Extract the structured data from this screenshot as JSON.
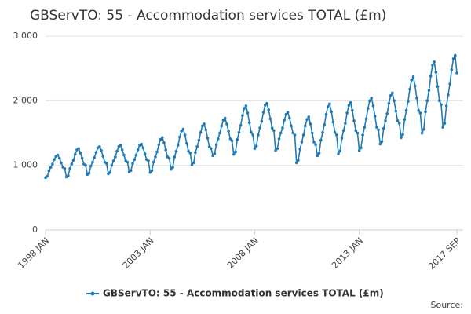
{
  "chart_data": {
    "type": "line",
    "title": "GBServTO: 55 - Accommodation services TOTAL (£m)",
    "source": "Source:",
    "categories": [
      "1998 JAN",
      null,
      null,
      null,
      null,
      null,
      null,
      null,
      null,
      null,
      null,
      null,
      null,
      null,
      null,
      null,
      null,
      null,
      null,
      null,
      null,
      null,
      null,
      null,
      null,
      null,
      null,
      null,
      null,
      null,
      null,
      null,
      null,
      null,
      null,
      null,
      null,
      null,
      null,
      null,
      null,
      null,
      null,
      null,
      null,
      null,
      null,
      null,
      null,
      null,
      null,
      null,
      null,
      null,
      null,
      null,
      null,
      null,
      null,
      null,
      "2003 JAN",
      null,
      null,
      null,
      null,
      null,
      null,
      null,
      null,
      null,
      null,
      null,
      null,
      null,
      null,
      null,
      null,
      null,
      null,
      null,
      null,
      null,
      null,
      null,
      null,
      null,
      null,
      null,
      null,
      null,
      null,
      null,
      null,
      null,
      null,
      null,
      null,
      null,
      null,
      null,
      null,
      null,
      null,
      null,
      null,
      null,
      null,
      null,
      null,
      null,
      null,
      null,
      null,
      null,
      null,
      null,
      null,
      null,
      null,
      null,
      "2008 JAN",
      null,
      null,
      null,
      null,
      null,
      null,
      null,
      null,
      null,
      null,
      null,
      null,
      null,
      null,
      null,
      null,
      null,
      null,
      null,
      null,
      null,
      null,
      null,
      null,
      null,
      null,
      null,
      null,
      null,
      null,
      null,
      null,
      null,
      null,
      null,
      null,
      null,
      null,
      null,
      null,
      null,
      null,
      null,
      null,
      null,
      null,
      null,
      null,
      null,
      null,
      null,
      null,
      null,
      null,
      null,
      null,
      null,
      null,
      null,
      "2013 JAN",
      null,
      null,
      null,
      null,
      null,
      null,
      null,
      null,
      null,
      null,
      null,
      null,
      null,
      null,
      null,
      null,
      null,
      null,
      null,
      null,
      null,
      null,
      null,
      null,
      null,
      null,
      null,
      null,
      null,
      null,
      null,
      null,
      null,
      null,
      null,
      null,
      null,
      null,
      null,
      null,
      null,
      null,
      null,
      null,
      null,
      null,
      null,
      null,
      null,
      null,
      null,
      null,
      null,
      null,
      null,
      "2017 SEP"
    ],
    "series": [
      {
        "name": "GBServTO: 55 - Accommodation services TOTAL (£m)",
        "color": "#1f7ab5",
        "values": [
          810,
          830,
          915,
          970,
          1020,
          1090,
          1140,
          1160,
          1110,
          1040,
          970,
          950,
          820,
          840,
          950,
          1020,
          1080,
          1170,
          1240,
          1260,
          1190,
          1110,
          1020,
          1000,
          860,
          880,
          990,
          1050,
          1120,
          1200,
          1270,
          1290,
          1230,
          1140,
          1050,
          1030,
          870,
          890,
          1000,
          1070,
          1130,
          1220,
          1290,
          1310,
          1240,
          1160,
          1070,
          1050,
          900,
          920,
          1030,
          1090,
          1160,
          1240,
          1310,
          1330,
          1270,
          1180,
          1090,
          1070,
          890,
          920,
          1050,
          1130,
          1210,
          1320,
          1400,
          1430,
          1350,
          1240,
          1130,
          1110,
          940,
          970,
          1130,
          1220,
          1310,
          1440,
          1530,
          1560,
          1470,
          1340,
          1220,
          1190,
          1010,
          1040,
          1200,
          1290,
          1390,
          1510,
          1610,
          1640,
          1550,
          1420,
          1290,
          1260,
          1150,
          1180,
          1320,
          1410,
          1500,
          1610,
          1700,
          1730,
          1640,
          1530,
          1410,
          1380,
          1170,
          1210,
          1400,
          1510,
          1620,
          1770,
          1880,
          1920,
          1810,
          1660,
          1510,
          1470,
          1260,
          1300,
          1470,
          1580,
          1680,
          1820,
          1930,
          1960,
          1860,
          1720,
          1580,
          1540,
          1230,
          1260,
          1410,
          1500,
          1580,
          1700,
          1790,
          1820,
          1730,
          1610,
          1500,
          1470,
          1040,
          1080,
          1250,
          1360,
          1470,
          1610,
          1710,
          1750,
          1640,
          1500,
          1360,
          1320,
          1150,
          1190,
          1390,
          1510,
          1630,
          1790,
          1910,
          1950,
          1830,
          1670,
          1510,
          1470,
          1180,
          1220,
          1420,
          1540,
          1650,
          1810,
          1930,
          1970,
          1850,
          1690,
          1540,
          1500,
          1230,
          1270,
          1470,
          1590,
          1720,
          1880,
          2000,
          2040,
          1920,
          1760,
          1590,
          1550,
          1330,
          1370,
          1570,
          1690,
          1800,
          1960,
          2080,
          2120,
          2000,
          1840,
          1690,
          1650,
          1430,
          1480,
          1710,
          1850,
          1990,
          2180,
          2320,
          2370,
          2230,
          2040,
          1850,
          1810,
          1500,
          1560,
          1830,
          2000,
          2160,
          2380,
          2550,
          2600,
          2440,
          2220,
          2000,
          1940,
          1590,
          1650,
          1920,
          2090,
          2260,
          2480,
          2650,
          2700,
          2430
        ]
      }
    ],
    "ylim": [
      0,
      3000
    ],
    "yticks": [
      0,
      {
        "value": 1000,
        "label": "1 000"
      },
      {
        "value": 2000,
        "label": "2 000"
      },
      {
        "value": 3000,
        "label": "3 000"
      }
    ],
    "grid": true
  }
}
